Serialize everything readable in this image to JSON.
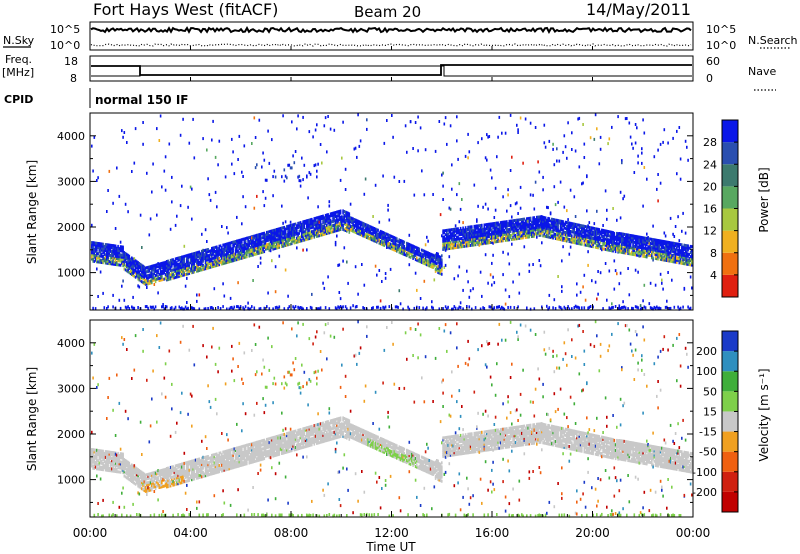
{
  "header": {
    "station": "Fort Hays West (fitACF)",
    "beam": "Beam 20",
    "date": "14/May/2011"
  },
  "labels": {
    "nsky": "N.Sky",
    "nsearch": "N.Search",
    "freq": "Freq.",
    "freq_unit": "[MHz]",
    "nave": "Nave",
    "cpid": "CPID",
    "mode": "normal 150 IF",
    "ylabel": "Slant Range [km]",
    "xlabel": "Time UT",
    "power_label": "Power [dB]",
    "velocity_label": "Velocity [m s⁻¹]"
  },
  "noise_axes": {
    "left_top": "10^5",
    "left_bottom": "10^0",
    "right_top": "10^5",
    "right_bottom": "10^0"
  },
  "freq_axes": {
    "left_top": "18",
    "left_bottom": "8",
    "right_top": "60",
    "right_bottom": "0"
  },
  "chart_data": [
    {
      "type": "heatmap",
      "name": "power",
      "x_ticks": [
        "00:00",
        "04:00",
        "08:00",
        "12:00",
        "16:00",
        "20:00",
        "00:00"
      ],
      "y_ticks": [
        "1000",
        "2000",
        "3000",
        "4000"
      ],
      "ylim": [
        180,
        4500
      ],
      "xlim_hours": [
        0,
        24
      ],
      "colorbar_ticks": [
        "4",
        "8",
        "12",
        "16",
        "20",
        "24",
        "28"
      ],
      "colorbar_colors": [
        "#0a17e8",
        "#2a4fb0",
        "#3c7a6e",
        "#58a860",
        "#a8c840",
        "#f0b020",
        "#f07010",
        "#e02010"
      ]
    },
    {
      "type": "heatmap",
      "name": "velocity",
      "x_ticks": [
        "00:00",
        "04:00",
        "08:00",
        "12:00",
        "16:00",
        "20:00",
        "00:00"
      ],
      "y_ticks": [
        "1000",
        "2000",
        "3000",
        "4000"
      ],
      "ylim": [
        180,
        4500
      ],
      "xlim_hours": [
        0,
        24
      ],
      "colorbar_ticks": [
        "200",
        "100",
        "50",
        "15",
        "-15",
        "-50",
        "-100",
        "-200"
      ],
      "colorbar_colors": [
        "#1a3ac8",
        "#2f8fbf",
        "#3fae3a",
        "#7ed04a",
        "#c8c8c8",
        "#f0a020",
        "#f06010",
        "#d02010",
        "#c00000"
      ]
    }
  ],
  "colors": {
    "power_blue": "#1a2ec8",
    "velocity_gray": "#c6c6c6"
  }
}
